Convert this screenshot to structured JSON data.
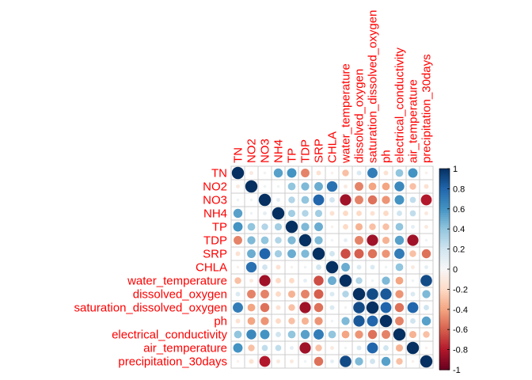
{
  "chart_data": {
    "type": "heatmap",
    "subtype": "correlation-circle-matrix",
    "title": "",
    "xlabel": "",
    "ylabel": "",
    "variables": [
      "TN",
      "NO2",
      "NO3",
      "NH4",
      "TP",
      "TDP",
      "SRP",
      "CHLA",
      "water_temperature",
      "dissolved_oxygen",
      "saturation_dissolved_oxygen",
      "ph",
      "electrical_conductivity",
      "air_temperature",
      "precipitation_30days"
    ],
    "matrix": [
      [
        1.0,
        -0.1,
        0.05,
        0.55,
        0.6,
        -0.5,
        -0.15,
        -0.05,
        -0.3,
        0.15,
        0.7,
        -0.15,
        0.4,
        0.6,
        -0.05
      ],
      [
        -0.1,
        1.0,
        0.05,
        0.05,
        0.4,
        0.45,
        0.5,
        0.75,
        -0.1,
        -0.5,
        -0.4,
        -0.4,
        0.65,
        -0.3,
        -0.15
      ],
      [
        0.05,
        0.05,
        1.0,
        0.1,
        0.3,
        0.4,
        0.8,
        0.2,
        -0.85,
        -0.5,
        -0.55,
        -0.45,
        0.6,
        0.25,
        -0.8
      ],
      [
        0.55,
        0.05,
        0.1,
        1.0,
        0.35,
        0.3,
        0.35,
        -0.15,
        -0.2,
        -0.2,
        -0.15,
        -0.2,
        0.2,
        0.25,
        -0.1
      ],
      [
        0.6,
        0.4,
        0.3,
        0.35,
        1.0,
        0.45,
        0.5,
        -0.05,
        -0.2,
        -0.35,
        -0.3,
        -0.3,
        0.4,
        0.1,
        -0.1
      ],
      [
        -0.5,
        0.45,
        0.4,
        0.3,
        0.45,
        1.0,
        0.45,
        0.05,
        0.1,
        -0.5,
        -0.85,
        -0.35,
        0.55,
        -0.85,
        0.05
      ],
      [
        -0.15,
        0.5,
        0.8,
        0.35,
        0.5,
        0.45,
        1.0,
        0.2,
        -0.65,
        -0.6,
        -0.55,
        -0.45,
        0.7,
        -0.3,
        -0.55
      ],
      [
        -0.05,
        0.75,
        0.2,
        -0.15,
        -0.05,
        0.05,
        0.2,
        1.0,
        0.5,
        0.15,
        0.15,
        0.05,
        0.4,
        -0.1,
        0.1
      ],
      [
        -0.3,
        -0.1,
        -0.85,
        -0.2,
        -0.2,
        0.1,
        -0.65,
        0.5,
        1.0,
        0.3,
        0.05,
        0.45,
        -0.4,
        0.05,
        0.9
      ],
      [
        0.15,
        -0.5,
        -0.5,
        -0.2,
        -0.35,
        -0.5,
        -0.6,
        0.15,
        0.3,
        1.0,
        0.9,
        0.85,
        -0.45,
        0.15,
        0.45
      ],
      [
        0.7,
        -0.4,
        -0.55,
        -0.15,
        -0.3,
        -0.85,
        -0.55,
        0.15,
        0.05,
        0.9,
        1.0,
        0.8,
        -0.55,
        0.8,
        0.2
      ],
      [
        -0.15,
        -0.4,
        -0.45,
        -0.2,
        -0.3,
        -0.35,
        -0.45,
        0.05,
        0.45,
        0.85,
        0.8,
        1.0,
        -0.5,
        0.2,
        0.55
      ],
      [
        0.4,
        0.65,
        0.6,
        0.2,
        0.4,
        0.55,
        0.7,
        0.4,
        -0.4,
        -0.45,
        -0.55,
        -0.5,
        1.0,
        -0.35,
        -0.3
      ],
      [
        0.6,
        -0.3,
        0.25,
        0.25,
        0.1,
        -0.85,
        -0.3,
        -0.1,
        0.05,
        0.15,
        0.8,
        0.2,
        -0.35,
        1.0,
        -0.05
      ],
      [
        -0.05,
        -0.15,
        -0.8,
        -0.1,
        -0.1,
        0.05,
        -0.55,
        0.1,
        0.9,
        0.45,
        0.2,
        0.55,
        -0.3,
        -0.05,
        1.0
      ]
    ],
    "colorbar": {
      "range": [
        -1,
        1
      ],
      "tick_labels": [
        "1",
        "0.8",
        "0.6",
        "0.4",
        "0.2",
        "0",
        "-0.2",
        "-0.4",
        "-0.6",
        "-0.8",
        "-1"
      ],
      "tick_values": [
        1,
        0.8,
        0.6,
        0.4,
        0.2,
        0,
        -0.2,
        -0.4,
        -0.6,
        -0.8,
        -1
      ]
    },
    "colors": {
      "label": "#ff0000",
      "negative_strong": "#67001f",
      "negative_mid": "#d6604d",
      "neutral": "#f7f7f7",
      "positive_mid": "#4393c3",
      "positive_strong": "#053061",
      "grid": "#cccccc"
    },
    "grid": true,
    "legend_placement": "right"
  }
}
